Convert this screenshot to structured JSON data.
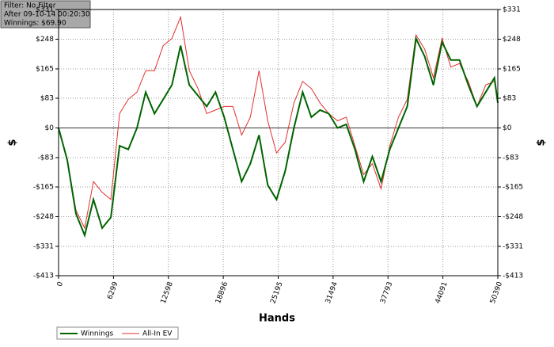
{
  "info": [
    "Filter: No Filter",
    "After 09-10-14 00:20:30",
    "Winnings: $69.90"
  ],
  "chart_data": {
    "type": "line",
    "xlabel": "Hands",
    "ylabel": "$",
    "grid": true,
    "legend": "bottom-left",
    "xlim": [
      0,
      50390
    ],
    "xticks": [
      0,
      6299,
      12598,
      18896,
      25195,
      31494,
      37793,
      44091,
      50390
    ],
    "ylim": [
      -413,
      331
    ],
    "yticks": [
      {
        "value": -413,
        "label": "-$413"
      },
      {
        "value": -331,
        "label": "-$331"
      },
      {
        "value": -248,
        "label": "-$248"
      },
      {
        "value": -165,
        "label": "-$165"
      },
      {
        "value": -83,
        "label": "-$83"
      },
      {
        "value": 0,
        "label": "$0"
      },
      {
        "value": 83,
        "label": "$83"
      },
      {
        "value": 165,
        "label": "$165"
      },
      {
        "value": 248,
        "label": "$248"
      },
      {
        "value": 331,
        "label": "$331"
      }
    ],
    "x": [
      0,
      1000,
      2000,
      3000,
      4000,
      5000,
      6000,
      7000,
      8000,
      9000,
      10000,
      11000,
      12000,
      13000,
      14000,
      15000,
      16000,
      17000,
      18000,
      19000,
      20000,
      21000,
      22000,
      23000,
      24000,
      25000,
      26000,
      27000,
      28000,
      29000,
      30000,
      31000,
      32000,
      33000,
      34000,
      35000,
      36000,
      37000,
      38000,
      39000,
      40000,
      41000,
      42000,
      43000,
      44000,
      45000,
      46000,
      47000,
      48000,
      49000,
      50000,
      50390
    ],
    "series": [
      {
        "name": "Winnings",
        "color": "#006400",
        "values": [
          0,
          -90,
          -240,
          -300,
          -200,
          -280,
          -250,
          -50,
          -60,
          0,
          100,
          40,
          80,
          120,
          230,
          120,
          90,
          60,
          100,
          30,
          -60,
          -150,
          -100,
          -20,
          -160,
          -200,
          -120,
          0,
          100,
          30,
          50,
          40,
          0,
          10,
          -60,
          -150,
          -80,
          -150,
          -60,
          0,
          60,
          250,
          200,
          120,
          240,
          190,
          190,
          120,
          60,
          100,
          140,
          69.9
        ]
      },
      {
        "name": "All-In EV",
        "color": "#e03030",
        "values": [
          0,
          -90,
          -230,
          -280,
          -150,
          -180,
          -200,
          40,
          80,
          100,
          160,
          160,
          230,
          250,
          310,
          160,
          110,
          40,
          50,
          60,
          60,
          -20,
          30,
          160,
          20,
          -70,
          -40,
          70,
          130,
          110,
          70,
          40,
          20,
          30,
          -50,
          -130,
          -100,
          -170,
          -50,
          30,
          80,
          260,
          220,
          140,
          250,
          170,
          180,
          130,
          60,
          120,
          130,
          80
        ]
      }
    ]
  }
}
